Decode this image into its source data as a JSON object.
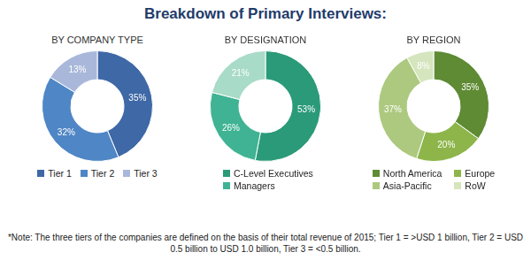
{
  "title": "Breakdown of Primary Interviews:",
  "note": "*Note: The three tiers of the companies are defined on the basis of their total revenue of 2015; Tier 1 = >USD 1 billion, Tier 2 = USD 0.5 billion to USD 1.0 billion, Tier 3 = <0.5 billion.",
  "chart_data": [
    {
      "type": "doughnut",
      "title": "BY COMPANY TYPE",
      "categories": [
        "Tier 1",
        "Tier 2",
        "Tier 3"
      ],
      "values": [
        35,
        32,
        13
      ],
      "value_labels": [
        "35%",
        "32%",
        "13%"
      ],
      "colors": [
        "#3e68a6",
        "#4f86c6",
        "#a9b8da"
      ],
      "data_labels": true,
      "legend": "bottom"
    },
    {
      "type": "doughnut",
      "title": "BY DESIGNATION",
      "categories": [
        "C-Level Executives",
        "Managers",
        null
      ],
      "values": [
        53,
        26,
        21
      ],
      "value_labels": [
        "53%",
        "26%",
        "21%"
      ],
      "colors": [
        "#2a9a78",
        "#3fb393",
        "#a8dbc8"
      ],
      "data_labels": true,
      "legend": "bottom"
    },
    {
      "type": "doughnut",
      "title": "BY REGION",
      "categories": [
        "North America",
        "Europe",
        "Asia-Pacific",
        "RoW"
      ],
      "values": [
        35,
        20,
        37,
        8
      ],
      "value_labels": [
        "35%",
        "20%",
        "37%",
        "8%"
      ],
      "colors": [
        "#5e8b33",
        "#8db54a",
        "#adc97f",
        "#d5e5bd"
      ],
      "data_labels": true,
      "legend": "bottom"
    }
  ]
}
